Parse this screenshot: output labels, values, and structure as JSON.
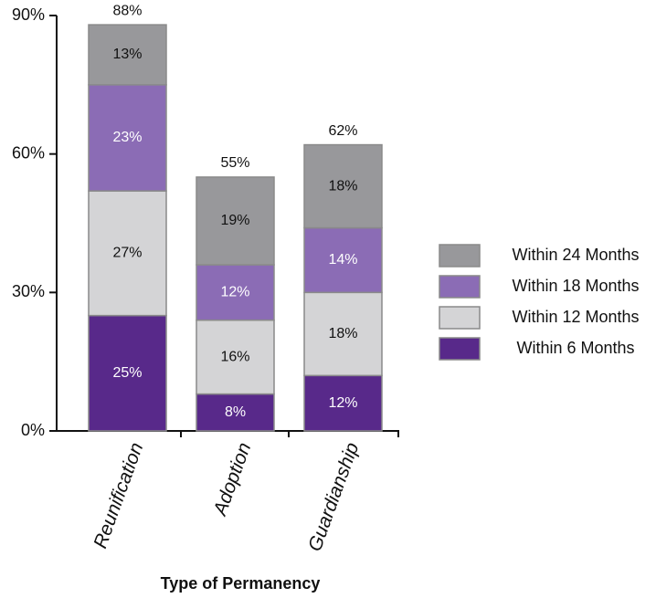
{
  "chart_data": {
    "type": "stacked_bar",
    "x_label": "Type of Permanency",
    "categories": [
      "Reunification",
      "Adoption",
      "Guardianship"
    ],
    "series": [
      {
        "name": "Within 6 Months",
        "color": "#58298a",
        "label_color": "#ffffff",
        "values": [
          25,
          8,
          12
        ],
        "value_labels": [
          "25%",
          "8%",
          "12%"
        ]
      },
      {
        "name": "Within 12 Months",
        "color": "#d4d4d6",
        "label_color": "#111111",
        "values": [
          27,
          16,
          18
        ],
        "value_labels": [
          "27%",
          "16%",
          "18%"
        ]
      },
      {
        "name": "Within 18 Months",
        "color": "#8b6cb5",
        "label_color": "#ffffff",
        "values": [
          23,
          12,
          14
        ],
        "value_labels": [
          "23%",
          "12%",
          "14%"
        ]
      },
      {
        "name": "Within 24 Months",
        "color": "#98989b",
        "label_color": "#111111",
        "values": [
          13,
          19,
          18
        ],
        "value_labels": [
          "13%",
          "19%",
          "18%"
        ]
      }
    ],
    "totals": [
      88,
      55,
      62
    ],
    "total_labels": [
      "88%",
      "55%",
      "62%"
    ],
    "ylim": [
      0,
      90
    ],
    "yticks": [
      {
        "value": 0,
        "label": "0%"
      },
      {
        "value": 30,
        "label": "30%"
      },
      {
        "value": 60,
        "label": "60%"
      },
      {
        "value": 90,
        "label": "90%"
      }
    ],
    "legend": "right"
  }
}
